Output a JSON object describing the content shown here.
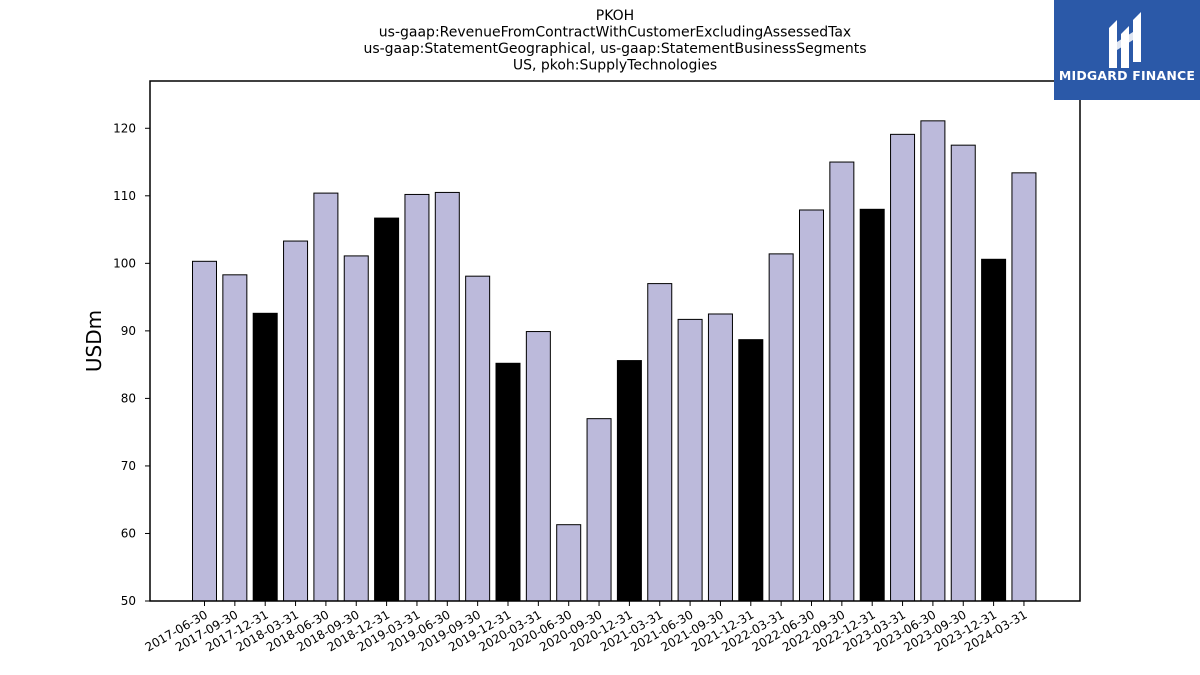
{
  "chart_data": {
    "type": "bar",
    "title_lines": [
      "PKOH",
      "us-gaap:RevenueFromContractWithCustomerExcludingAssessedTax",
      "us-gaap:StatementGeographical, us-gaap:StatementBusinessSegments",
      "US, pkoh:SupplyTechnologies"
    ],
    "ylabel": "USDm",
    "xlabel": "",
    "ylim": [
      50,
      127
    ],
    "yticks": [
      50,
      60,
      70,
      80,
      90,
      100,
      110,
      120
    ],
    "categories": [
      "2017-06-30",
      "2017-09-30",
      "2017-12-31",
      "2018-03-31",
      "2018-06-30",
      "2018-09-30",
      "2018-12-31",
      "2019-03-31",
      "2019-06-30",
      "2019-09-30",
      "2019-12-31",
      "2020-03-31",
      "2020-06-30",
      "2020-09-30",
      "2020-12-31",
      "2021-03-31",
      "2021-06-30",
      "2021-09-30",
      "2021-12-31",
      "2022-03-31",
      "2022-06-30",
      "2022-09-30",
      "2022-12-31",
      "2023-03-31",
      "2023-06-30",
      "2023-09-30",
      "2023-12-31",
      "2024-03-31"
    ],
    "values": [
      100.3,
      98.3,
      92.6,
      103.3,
      110.4,
      101.1,
      106.7,
      110.2,
      110.5,
      98.1,
      85.2,
      89.9,
      61.3,
      77.0,
      85.6,
      97.0,
      91.7,
      92.5,
      88.7,
      101.4,
      107.9,
      115.0,
      108.0,
      119.1,
      121.1,
      117.5,
      100.6,
      113.4
    ],
    "highlight_indices": [
      2,
      6,
      10,
      14,
      18,
      22,
      26
    ],
    "colors": {
      "normal": "#bcbadb",
      "highlight": "#000000",
      "edge": "#000000"
    }
  },
  "logo": {
    "text": "MIDGARD FINANCE",
    "icon": "midgard-logo-icon",
    "background": "#2b59a8"
  }
}
